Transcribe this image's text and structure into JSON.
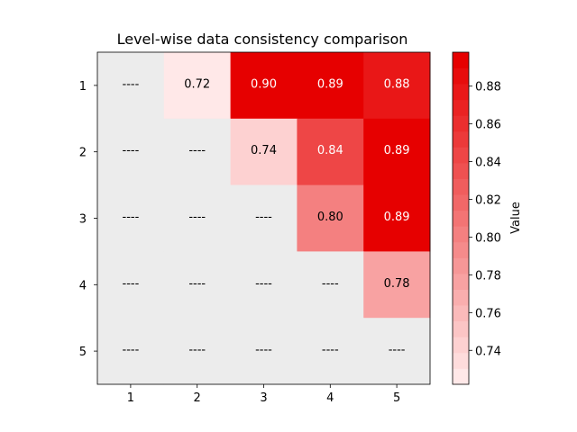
{
  "chart_data": {
    "type": "heatmap",
    "title": "Level-wise data consistency comparison",
    "x_categories": [
      "1",
      "2",
      "3",
      "4",
      "5"
    ],
    "y_categories": [
      "1",
      "2",
      "3",
      "4",
      "5"
    ],
    "values": [
      [
        null,
        0.72,
        0.9,
        0.89,
        0.88
      ],
      [
        null,
        null,
        0.74,
        0.84,
        0.89
      ],
      [
        null,
        null,
        null,
        0.8,
        0.89
      ],
      [
        null,
        null,
        null,
        null,
        0.78
      ],
      [
        null,
        null,
        null,
        null,
        null
      ]
    ],
    "missing_label": "----",
    "missing_color": "#ececec",
    "colorbar": {
      "label": "Value",
      "range": [
        0.722,
        0.898
      ],
      "ticks": [
        "0.74",
        "0.76",
        "0.78",
        "0.80",
        "0.82",
        "0.84",
        "0.86",
        "0.88"
      ],
      "low_color": "#ffe8e8",
      "high_color": "#e60000",
      "levels": 21
    }
  }
}
